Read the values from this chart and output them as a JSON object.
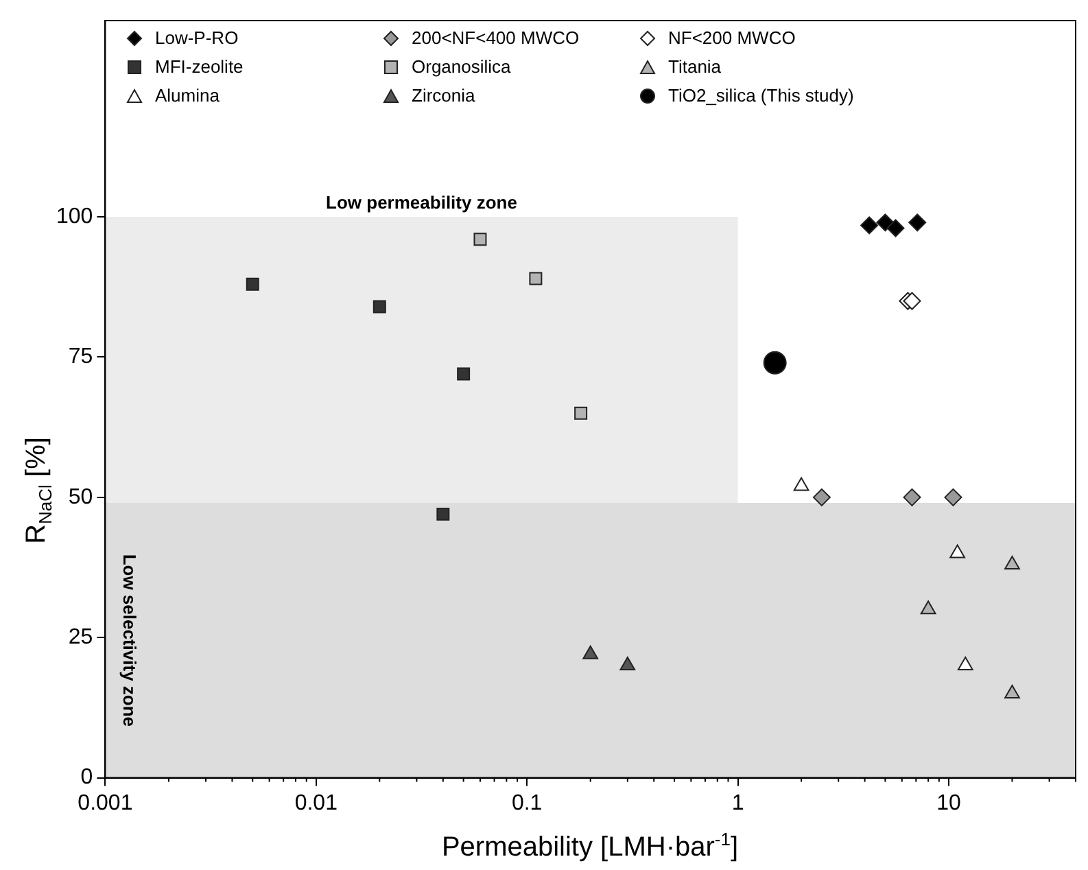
{
  "chart_data": {
    "type": "scatter",
    "xlabel": "Permeability [LMH·bar$^{-1}$]",
    "ylabel": "R$_{NaCl}$ [%]",
    "log": "x",
    "grid": false,
    "legend": "top",
    "xlim": [
      0.001,
      40
    ],
    "xticks": [
      0.001,
      0.01,
      0.1,
      1,
      10
    ],
    "ylim": [
      0,
      135
    ],
    "yticks": [
      0,
      25,
      50,
      75,
      100
    ],
    "bands": [
      {
        "axis": "x",
        "from": 0.001,
        "to": 1,
        "label": "Low permeability zone",
        "color": "#ececec"
      },
      {
        "axis": "y",
        "from": 0,
        "to": 49,
        "label": "Low selectivity zone",
        "color": "#dddddd"
      }
    ],
    "series": [
      {
        "name": "Low-P-RO",
        "color": "#000000",
        "marker": "diamond",
        "x": [
          4.2,
          5.0,
          5.6,
          7.1
        ],
        "values": [
          98.5,
          99,
          98,
          99
        ]
      },
      {
        "name": "200<NF<400 MWCO",
        "color": "#999999",
        "marker": "diamond",
        "x": [
          2.5,
          6.7,
          10.5
        ],
        "values": [
          50,
          50,
          50
        ]
      },
      {
        "name": "NF<200 MWCO",
        "color": "#ffffff",
        "marker": "diamond",
        "x": [
          6.4,
          6.7
        ],
        "values": [
          85,
          85
        ]
      },
      {
        "name": "MFI-zeolite",
        "color": "#333333",
        "marker": "square",
        "x": [
          0.005,
          0.02,
          0.05,
          0.04
        ],
        "values": [
          88,
          84,
          72,
          47
        ]
      },
      {
        "name": "Organosilica",
        "color": "#b3b3b3",
        "marker": "square",
        "x": [
          0.06,
          0.11,
          0.18
        ],
        "values": [
          96,
          89,
          65
        ]
      },
      {
        "name": "Titania",
        "color": "#b3b3b3",
        "marker": "triangle",
        "x": [
          20,
          8,
          20
        ],
        "values": [
          38,
          30,
          15
        ]
      },
      {
        "name": "Alumina",
        "color": "#ffffff",
        "marker": "triangle",
        "x": [
          2.0,
          11,
          12
        ],
        "values": [
          52,
          40,
          20
        ]
      },
      {
        "name": "Zirconia",
        "color": "#555555",
        "marker": "triangle",
        "x": [
          0.2,
          0.3
        ],
        "values": [
          22,
          20
        ]
      },
      {
        "name": "TiO2_silica (This study)",
        "color": "#000000",
        "marker": "circle",
        "x": [
          1.5
        ],
        "values": [
          74
        ]
      }
    ]
  }
}
